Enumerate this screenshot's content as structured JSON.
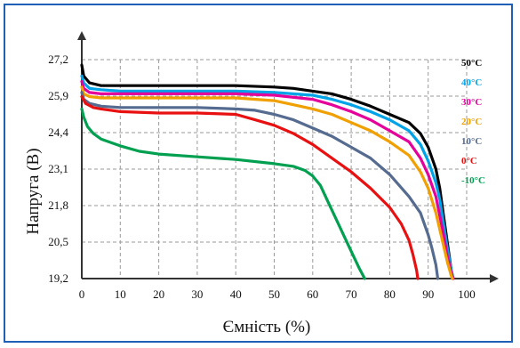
{
  "chart_data": {
    "type": "line",
    "title": "",
    "xlabel": "Ємність (%)",
    "ylabel": "Напруга (В)",
    "xlim": [
      0,
      100
    ],
    "ylim": [
      19.2,
      27.2
    ],
    "x_ticks": [
      "0",
      "10",
      "20",
      "30",
      "40",
      "50",
      "60",
      "70",
      "80",
      "90",
      "100"
    ],
    "y_ticks": [
      "19,2",
      "20,5",
      "21,8",
      "23,1",
      "24,4",
      "25,9",
      "27,2"
    ],
    "grid": true,
    "legend_position": "right",
    "series": [
      {
        "name": "50°C",
        "color": "#000000",
        "points": [
          [
            0,
            27.0
          ],
          [
            0.5,
            26.6
          ],
          [
            2,
            26.35
          ],
          [
            5,
            26.25
          ],
          [
            10,
            26.25
          ],
          [
            20,
            26.25
          ],
          [
            30,
            26.25
          ],
          [
            40,
            26.25
          ],
          [
            50,
            26.2
          ],
          [
            55,
            26.15
          ],
          [
            60,
            26.05
          ],
          [
            65,
            25.95
          ],
          [
            70,
            25.75
          ],
          [
            75,
            25.5
          ],
          [
            80,
            25.2
          ],
          [
            85,
            24.9
          ],
          [
            88,
            24.5
          ],
          [
            90,
            24.0
          ],
          [
            92,
            23.2
          ],
          [
            93,
            22.5
          ],
          [
            94,
            21.5
          ],
          [
            95,
            20.5
          ],
          [
            96,
            19.5
          ],
          [
            96.5,
            19.2
          ]
        ]
      },
      {
        "name": "40°C",
        "color": "#00a3e8",
        "points": [
          [
            0,
            26.6
          ],
          [
            0.5,
            26.35
          ],
          [
            2,
            26.15
          ],
          [
            5,
            26.1
          ],
          [
            10,
            26.05
          ],
          [
            20,
            26.05
          ],
          [
            30,
            26.05
          ],
          [
            40,
            26.05
          ],
          [
            50,
            26.0
          ],
          [
            60,
            25.9
          ],
          [
            65,
            25.75
          ],
          [
            70,
            25.55
          ],
          [
            75,
            25.3
          ],
          [
            80,
            25.0
          ],
          [
            85,
            24.6
          ],
          [
            88,
            24.1
          ],
          [
            90,
            23.5
          ],
          [
            92,
            22.7
          ],
          [
            93,
            22.1
          ],
          [
            94,
            21.2
          ],
          [
            95,
            20.3
          ],
          [
            96,
            19.5
          ],
          [
            96.5,
            19.2
          ]
        ]
      },
      {
        "name": "30°C",
        "color": "#e6009a",
        "points": [
          [
            0,
            26.4
          ],
          [
            0.5,
            26.15
          ],
          [
            2,
            26.0
          ],
          [
            5,
            25.95
          ],
          [
            10,
            25.95
          ],
          [
            20,
            25.95
          ],
          [
            30,
            25.95
          ],
          [
            40,
            25.95
          ],
          [
            50,
            25.9
          ],
          [
            60,
            25.75
          ],
          [
            65,
            25.55
          ],
          [
            70,
            25.3
          ],
          [
            75,
            25.0
          ],
          [
            80,
            24.6
          ],
          [
            85,
            24.2
          ],
          [
            88,
            23.6
          ],
          [
            90,
            23.0
          ],
          [
            92,
            22.2
          ],
          [
            93,
            21.5
          ],
          [
            94,
            20.8
          ],
          [
            95,
            20.0
          ],
          [
            96,
            19.4
          ],
          [
            96.5,
            19.2
          ]
        ]
      },
      {
        "name": "20°C",
        "color": "#f0a000",
        "points": [
          [
            0,
            26.2
          ],
          [
            0.5,
            25.95
          ],
          [
            2,
            25.85
          ],
          [
            5,
            25.8
          ],
          [
            10,
            25.8
          ],
          [
            20,
            25.8
          ],
          [
            30,
            25.8
          ],
          [
            40,
            25.8
          ],
          [
            50,
            25.7
          ],
          [
            55,
            25.55
          ],
          [
            60,
            25.4
          ],
          [
            65,
            25.2
          ],
          [
            70,
            24.9
          ],
          [
            75,
            24.6
          ],
          [
            80,
            24.2
          ],
          [
            85,
            23.7
          ],
          [
            88,
            23.1
          ],
          [
            90,
            22.5
          ],
          [
            92,
            21.6
          ],
          [
            93,
            21.0
          ],
          [
            94,
            20.4
          ],
          [
            95,
            19.8
          ],
          [
            96,
            19.3
          ],
          [
            96.3,
            19.2
          ]
        ]
      },
      {
        "name": "10°C",
        "color": "#556b8f",
        "points": [
          [
            0,
            26.0
          ],
          [
            0.5,
            25.75
          ],
          [
            2,
            25.6
          ],
          [
            5,
            25.5
          ],
          [
            10,
            25.45
          ],
          [
            20,
            25.45
          ],
          [
            30,
            25.45
          ],
          [
            40,
            25.4
          ],
          [
            45,
            25.35
          ],
          [
            50,
            25.2
          ],
          [
            55,
            25.0
          ],
          [
            60,
            24.7
          ],
          [
            65,
            24.4
          ],
          [
            70,
            24.0
          ],
          [
            75,
            23.6
          ],
          [
            80,
            23.0
          ],
          [
            85,
            22.2
          ],
          [
            88,
            21.6
          ],
          [
            90,
            20.8
          ],
          [
            91,
            20.3
          ],
          [
            92,
            19.7
          ],
          [
            92.5,
            19.2
          ]
        ]
      },
      {
        "name": "0°C",
        "color": "#e81010",
        "points": [
          [
            0,
            25.85
          ],
          [
            1,
            25.6
          ],
          [
            3,
            25.45
          ],
          [
            5,
            25.4
          ],
          [
            10,
            25.3
          ],
          [
            20,
            25.25
          ],
          [
            30,
            25.25
          ],
          [
            40,
            25.2
          ],
          [
            45,
            25.0
          ],
          [
            50,
            24.8
          ],
          [
            55,
            24.5
          ],
          [
            60,
            24.1
          ],
          [
            65,
            23.6
          ],
          [
            70,
            23.1
          ],
          [
            75,
            22.5
          ],
          [
            80,
            21.8
          ],
          [
            83,
            21.2
          ],
          [
            85,
            20.6
          ],
          [
            86,
            20.1
          ],
          [
            87,
            19.5
          ],
          [
            87.3,
            19.2
          ]
        ]
      },
      {
        "name": "-10°C",
        "color": "#00a050",
        "points": [
          [
            0,
            25.4
          ],
          [
            0.5,
            25.1
          ],
          [
            1.5,
            24.75
          ],
          [
            3,
            24.5
          ],
          [
            5,
            24.3
          ],
          [
            10,
            24.05
          ],
          [
            15,
            23.85
          ],
          [
            20,
            23.75
          ],
          [
            30,
            23.65
          ],
          [
            40,
            23.55
          ],
          [
            50,
            23.4
          ],
          [
            55,
            23.3
          ],
          [
            58,
            23.15
          ],
          [
            60,
            22.95
          ],
          [
            62,
            22.6
          ],
          [
            64,
            22.0
          ],
          [
            66,
            21.4
          ],
          [
            68,
            20.8
          ],
          [
            70,
            20.2
          ],
          [
            72,
            19.6
          ],
          [
            73.5,
            19.2
          ]
        ]
      }
    ]
  }
}
